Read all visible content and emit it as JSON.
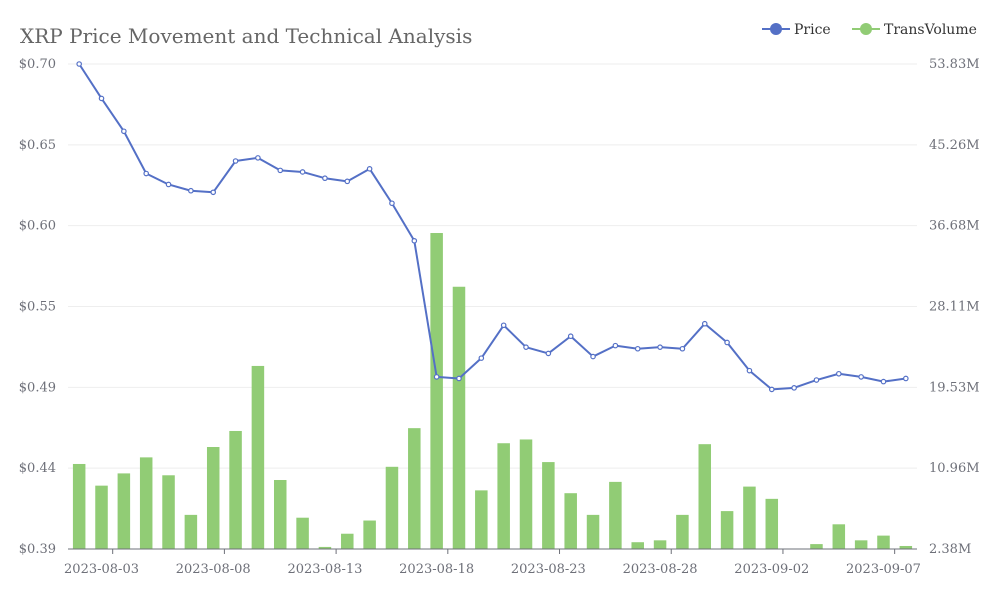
{
  "chart_data": {
    "type": "bar+line",
    "title": "XRP Price Movement and Technical Analysis",
    "legend": [
      {
        "name": "Price",
        "color": "#5470c6",
        "icon": "line-circle-icon"
      },
      {
        "name": "TransVolume",
        "color": "#91cc75",
        "icon": "line-circle-icon"
      }
    ],
    "legend_position": "top-right",
    "categories": [
      "2023-08-02",
      "2023-08-03",
      "2023-08-04",
      "2023-08-05",
      "2023-08-06",
      "2023-08-07",
      "2023-08-08",
      "2023-08-09",
      "2023-08-10",
      "2023-08-11",
      "2023-08-12",
      "2023-08-13",
      "2023-08-14",
      "2023-08-15",
      "2023-08-16",
      "2023-08-17",
      "2023-08-18",
      "2023-08-19",
      "2023-08-20",
      "2023-08-21",
      "2023-08-22",
      "2023-08-23",
      "2023-08-24",
      "2023-08-25",
      "2023-08-26",
      "2023-08-27",
      "2023-08-28",
      "2023-08-29",
      "2023-08-30",
      "2023-08-31",
      "2023-09-01",
      "2023-09-02",
      "2023-09-03",
      "2023-09-04",
      "2023-09-05",
      "2023-09-06",
      "2023-09-07",
      "2023-09-08"
    ],
    "x_tick_labels": [
      "2023-08-03",
      "2023-08-08",
      "2023-08-13",
      "2023-08-18",
      "2023-08-23",
      "2023-08-28",
      "2023-09-02",
      "2023-09-07"
    ],
    "y_left": {
      "name": "Price",
      "tick_labels": [
        "$0.39",
        "$0.44",
        "$0.49",
        "$0.55",
        "$0.60",
        "$0.65",
        "$0.70"
      ],
      "min": 0.39,
      "max": 0.7
    },
    "y_right": {
      "name": "TransVolume",
      "tick_labels": [
        "2.38M",
        "10.96M",
        "19.53M",
        "28.11M",
        "36.68M",
        "45.26M",
        "53.83M"
      ],
      "min": 2.38,
      "max": 53.83
    },
    "series": [
      {
        "name": "Price",
        "type": "line",
        "color": "#5470c6",
        "values": [
          0.7,
          0.678,
          0.657,
          0.63,
          0.623,
          0.619,
          0.618,
          0.638,
          0.64,
          0.632,
          0.631,
          0.627,
          0.625,
          0.633,
          0.611,
          0.587,
          0.5,
          0.499,
          0.512,
          0.533,
          0.519,
          0.515,
          0.526,
          0.513,
          0.52,
          0.518,
          0.519,
          0.518,
          0.534,
          0.522,
          0.504,
          0.492,
          0.493,
          0.498,
          0.502,
          0.5,
          0.497,
          0.499
        ]
      },
      {
        "name": "TransVolume",
        "type": "bar",
        "color": "#91cc75",
        "values": [
          11.4,
          9.1,
          10.4,
          12.1,
          10.2,
          6.0,
          13.2,
          14.9,
          21.8,
          9.7,
          5.7,
          2.6,
          4.0,
          5.4,
          11.1,
          15.2,
          35.9,
          30.2,
          8.6,
          13.6,
          14.0,
          11.6,
          8.3,
          6.0,
          9.5,
          3.1,
          3.3,
          6.0,
          13.5,
          6.4,
          9.0,
          7.7,
          2.3,
          2.9,
          5.0,
          3.3,
          3.8,
          2.7
        ]
      }
    ]
  }
}
